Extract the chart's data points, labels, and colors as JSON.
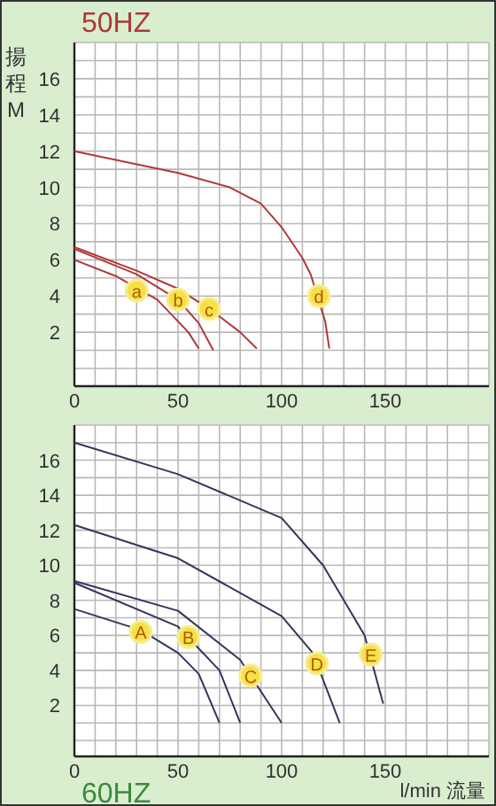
{
  "chart_data": [
    {
      "type": "line",
      "title": "50HZ",
      "ylabel": "揚程M",
      "xlim": [
        0,
        200
      ],
      "ylim": [
        0,
        18
      ],
      "xticks": [
        0,
        50,
        100,
        150
      ],
      "yticks": [
        2,
        4,
        6,
        8,
        10,
        12,
        14,
        16
      ],
      "grid": true,
      "series": [
        {
          "color": "#b03838",
          "x": [
            0,
            20,
            40,
            55,
            60
          ],
          "values": [
            6.0,
            5.1,
            3.8,
            2.0,
            1.1
          ]
        },
        {
          "color": "#b03838",
          "x": [
            0,
            30,
            50,
            60,
            67
          ],
          "values": [
            6.6,
            5.2,
            3.8,
            2.5,
            1.0
          ]
        },
        {
          "color": "#b03838",
          "x": [
            0,
            30,
            50,
            65,
            80,
            88
          ],
          "values": [
            6.7,
            5.4,
            4.4,
            3.3,
            2.0,
            1.1
          ]
        },
        {
          "color": "#b03838",
          "x": [
            0,
            50,
            75,
            90,
            100,
            110,
            114,
            121,
            123
          ],
          "values": [
            12,
            10.8,
            10,
            9.1,
            7.8,
            6.1,
            5.2,
            2.6,
            1.1
          ]
        }
      ],
      "annotations": [
        {
          "text": "a",
          "x": 30,
          "y": 4.3
        },
        {
          "text": "b",
          "x": 50,
          "y": 3.8
        },
        {
          "text": "c",
          "x": 65,
          "y": 3.3
        },
        {
          "text": "d",
          "x": 118,
          "y": 4
        }
      ]
    },
    {
      "type": "line",
      "title": "60HZ",
      "xlabel": "l/min 流量",
      "xlim": [
        0,
        200
      ],
      "ylim": [
        0,
        18
      ],
      "xticks": [
        0,
        50,
        100,
        150
      ],
      "yticks": [
        2,
        4,
        6,
        8,
        10,
        12,
        14,
        16
      ],
      "grid": true,
      "series": [
        {
          "color": "#34345e",
          "x": [
            0,
            32,
            50,
            60,
            70
          ],
          "values": [
            7.5,
            6.3,
            5.0,
            3.8,
            1.0
          ]
        },
        {
          "color": "#34345e",
          "x": [
            0,
            50,
            70,
            80
          ],
          "values": [
            9.0,
            6.5,
            4.0,
            1.0
          ]
        },
        {
          "color": "#34345e",
          "x": [
            0,
            50,
            80,
            100
          ],
          "values": [
            9.1,
            7.4,
            4.6,
            1.0
          ]
        },
        {
          "color": "#34345e",
          "x": [
            0,
            50,
            100,
            115,
            128
          ],
          "values": [
            12.3,
            10.4,
            7.1,
            5.0,
            1.0
          ]
        },
        {
          "color": "#34345e",
          "x": [
            0,
            50,
            100,
            120,
            140,
            149
          ],
          "values": [
            17,
            15.2,
            12.7,
            10,
            6,
            2.1
          ]
        }
      ],
      "annotations": [
        {
          "text": "A",
          "x": 32,
          "y": 6.2
        },
        {
          "text": "B",
          "x": 55,
          "y": 5.9
        },
        {
          "text": "C",
          "x": 85,
          "y": 3.7
        },
        {
          "text": "D",
          "x": 117,
          "y": 4.4
        },
        {
          "text": "E",
          "x": 143,
          "y": 4.9
        }
      ]
    }
  ]
}
